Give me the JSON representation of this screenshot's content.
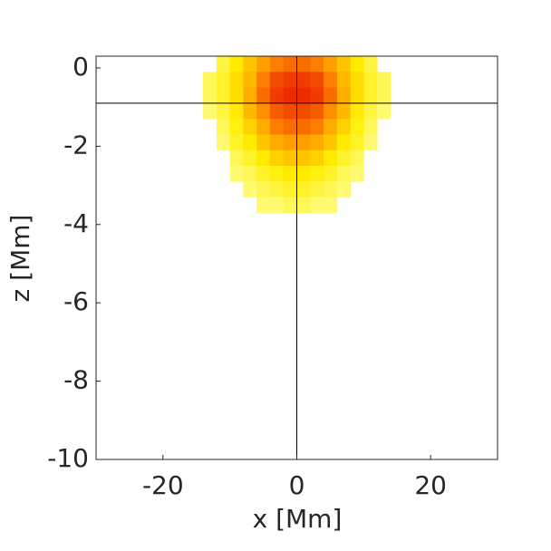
{
  "chart_data": {
    "type": "heatmap",
    "xlabel": "x [Mm]",
    "ylabel": "z [Mm]",
    "x": [
      -13,
      -11,
      -9,
      -7,
      -5,
      -3,
      -1,
      1,
      3,
      5,
      7,
      9,
      11,
      13
    ],
    "y": [
      0.1,
      -0.3,
      -0.7,
      -1.1,
      -1.5,
      -1.9,
      -2.3,
      -2.7,
      -3.1,
      -3.5
    ],
    "z": [
      [
        null,
        0.2,
        0.35,
        0.5,
        0.65,
        0.75,
        0.8,
        0.8,
        0.75,
        0.65,
        0.5,
        0.35,
        0.2,
        null
      ],
      [
        0.15,
        0.25,
        0.4,
        0.55,
        0.75,
        0.9,
        0.95,
        0.95,
        0.9,
        0.75,
        0.55,
        0.4,
        0.25,
        0.15
      ],
      [
        0.15,
        0.25,
        0.4,
        0.6,
        0.8,
        0.95,
        1.0,
        1.0,
        0.95,
        0.8,
        0.6,
        0.4,
        0.25,
        0.15
      ],
      [
        0.1,
        0.2,
        0.35,
        0.55,
        0.7,
        0.85,
        0.9,
        0.9,
        0.85,
        0.7,
        0.55,
        0.35,
        0.2,
        0.1
      ],
      [
        null,
        0.15,
        0.3,
        0.45,
        0.6,
        0.75,
        0.8,
        0.8,
        0.75,
        0.6,
        0.45,
        0.3,
        0.15,
        null
      ],
      [
        null,
        0.1,
        0.25,
        0.35,
        0.5,
        0.6,
        0.65,
        0.65,
        0.6,
        0.5,
        0.35,
        0.25,
        0.1,
        null
      ],
      [
        null,
        null,
        0.15,
        0.25,
        0.35,
        0.45,
        0.5,
        0.5,
        0.45,
        0.35,
        0.25,
        0.15,
        null,
        null
      ],
      [
        null,
        null,
        0.1,
        0.15,
        0.25,
        0.3,
        0.35,
        0.35,
        0.3,
        0.25,
        0.15,
        0.1,
        null,
        null
      ],
      [
        null,
        null,
        null,
        0.1,
        0.15,
        0.2,
        0.25,
        0.25,
        0.2,
        0.15,
        0.1,
        null,
        null,
        null
      ],
      [
        null,
        null,
        null,
        null,
        0.1,
        0.1,
        0.15,
        0.15,
        0.1,
        0.1,
        null,
        null,
        null,
        null
      ]
    ],
    "colormap": [
      "#ffffa0",
      "#ffee00",
      "#ff9a00",
      "#ee2a00"
    ],
    "crosshair": {
      "x": 0,
      "y": -0.9
    },
    "xlim": [
      -30,
      30
    ],
    "xticks": [
      -20,
      0,
      20
    ],
    "ylim": [
      -10,
      0.3
    ],
    "yticks": [
      -10,
      -8,
      -6,
      -4,
      -2,
      0
    ]
  }
}
